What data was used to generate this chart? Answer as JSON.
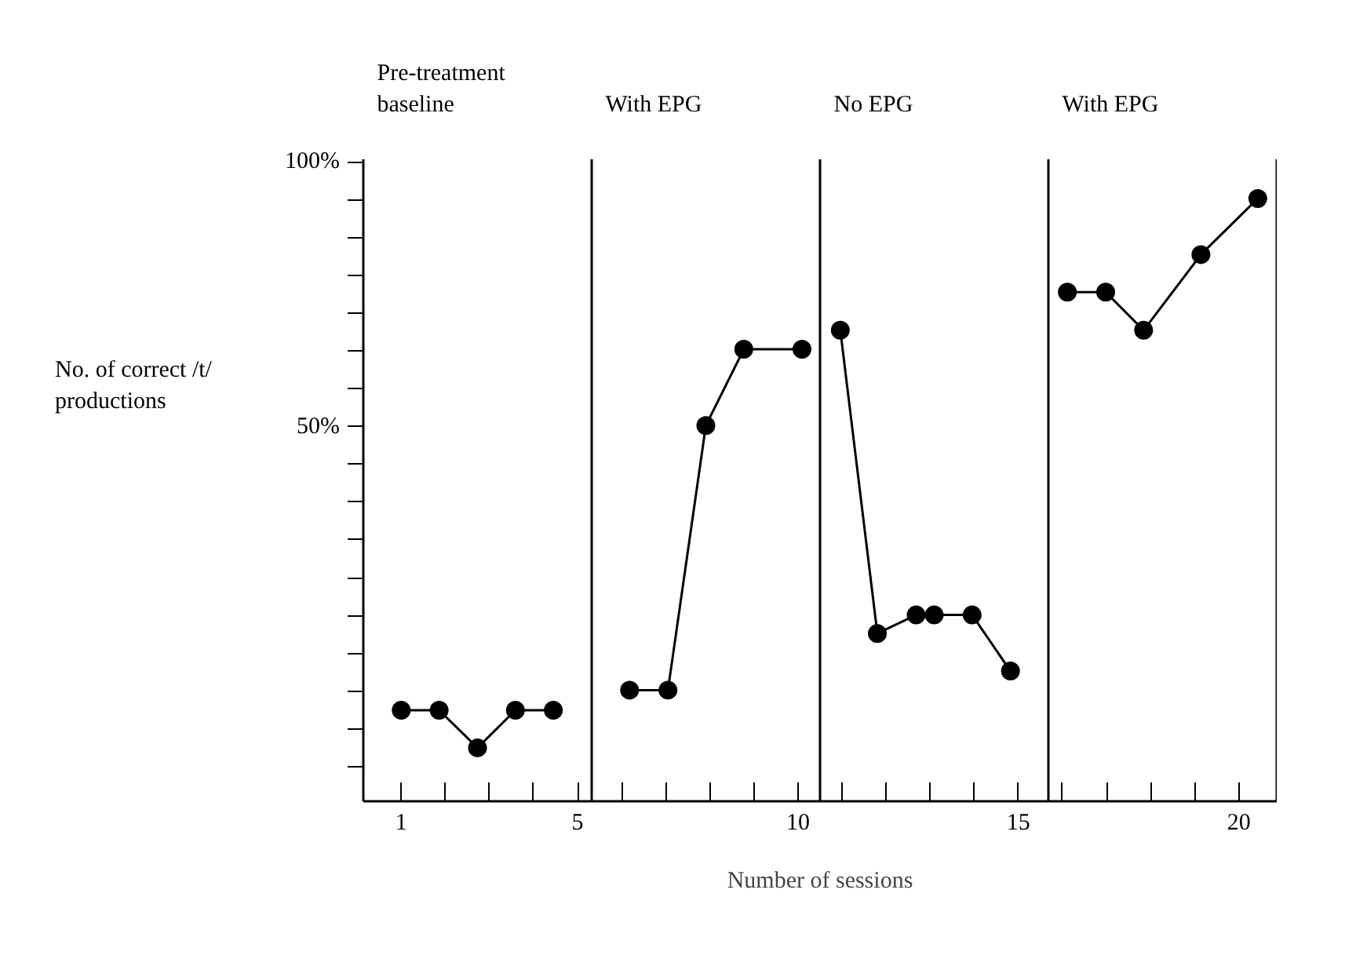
{
  "chart_data": {
    "type": "line",
    "xlabel": "Number of sessions",
    "ylabel": "No. of correct /t/ productions",
    "annotations": [
      "Pre-treatment baseline",
      "With EPG",
      "No EPG",
      "With EPG"
    ],
    "series": [
      {
        "color": "#000000",
        "x": [
          1,
          1.86,
          2.73,
          3.59,
          4.45
        ],
        "values": [
          -3.6,
          -3.6,
          -10.7,
          -3.6,
          -3.6
        ]
      },
      {
        "color": "#000000",
        "x": [
          6.18,
          7.05,
          7.91,
          8.77,
          10.09
        ],
        "values": [
          0.2,
          0.2,
          50.2,
          64.6,
          64.6
        ]
      },
      {
        "color": "#000000",
        "x": [
          10.96,
          11.8,
          12.68,
          13.09,
          13.95,
          14.82
        ],
        "values": [
          68.2,
          10.9,
          14.4,
          14.4,
          14.4,
          3.8
        ]
      },
      {
        "color": "#000000",
        "x": [
          16.11,
          16.98,
          17.84,
          19.14,
          20.43
        ],
        "values": [
          75.4,
          75.4,
          68.2,
          82.5,
          93.1
        ]
      }
    ],
    "ref_lines": [
      {
        "axis": "x",
        "value": 5.32,
        "color": "#000000"
      },
      {
        "axis": "x",
        "value": 10.5,
        "color": "#000000"
      },
      {
        "axis": "x",
        "value": 15.68,
        "color": "#000000"
      },
      {
        "axis": "x",
        "value": 20.86,
        "color": "#000000"
      }
    ],
    "xlim": [
      0.14,
      20.86
    ],
    "xticks": [
      1,
      {
        "value": 2,
        "label": null
      },
      {
        "value": 3,
        "label": null
      },
      {
        "value": 4,
        "label": null
      },
      5,
      {
        "value": 6,
        "label": null
      },
      {
        "value": 7,
        "label": null
      },
      {
        "value": 8,
        "label": null
      },
      {
        "value": 9,
        "label": null
      },
      10,
      {
        "value": 11,
        "label": null
      },
      {
        "value": 12,
        "label": null
      },
      {
        "value": 13,
        "label": null
      },
      {
        "value": 14,
        "label": null
      },
      15,
      {
        "value": 16,
        "label": null
      },
      {
        "value": 17,
        "label": null
      },
      {
        "value": 18,
        "label": null
      },
      {
        "value": 19,
        "label": null
      },
      20
    ],
    "ylim": [
      -20.8,
      100.5
    ],
    "yticks": [
      {
        "value": 100,
        "label": "100%"
      },
      {
        "value": 92.9,
        "label": null
      },
      {
        "value": 85.7,
        "label": null
      },
      {
        "value": 78.6,
        "label": null
      },
      {
        "value": 71.4,
        "label": null
      },
      {
        "value": 64.3,
        "label": null
      },
      {
        "value": 57.1,
        "label": null
      },
      {
        "value": 50,
        "label": "50%"
      },
      {
        "value": 42.9,
        "label": null
      },
      {
        "value": 35.7,
        "label": null
      },
      {
        "value": 28.6,
        "label": null
      },
      {
        "value": 21.4,
        "label": null
      },
      {
        "value": 14.3,
        "label": null
      },
      {
        "value": 7.1,
        "label": null
      },
      {
        "value": 0,
        "label": null
      },
      {
        "value": -7.1,
        "label": null
      },
      {
        "value": -14.3,
        "label": null
      }
    ],
    "grid": false,
    "marker": "circle",
    "line_style": "solid"
  }
}
